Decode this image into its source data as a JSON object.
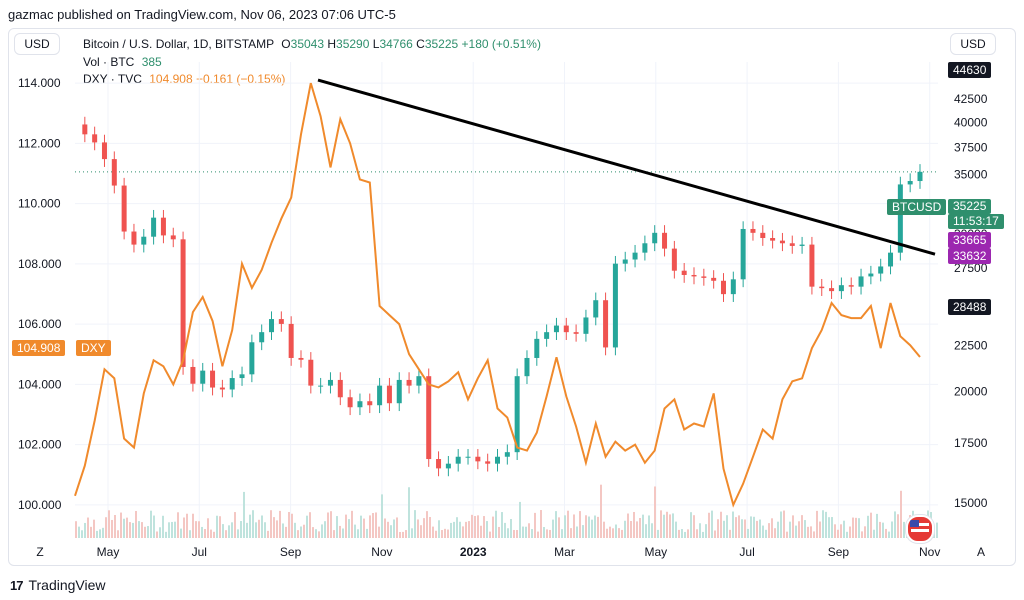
{
  "header_note": "gazmac published on TradingView.com, Nov 06, 2023 07:06 UTC-5",
  "currency_left": "USD",
  "currency_right": "USD",
  "legend": {
    "symbol": "Bitcoin / U.S. Dollar, 1D, BITSTAMP",
    "open_label": "O",
    "open": "35043",
    "high_label": "H",
    "high": "35290",
    "low_label": "L",
    "low": "34766",
    "close_label": "C",
    "close": "35225",
    "change": "+180 (+0.51%)",
    "vol_label": "Vol · BTC",
    "vol_value": "385",
    "dxy_label": "DXY · TVC",
    "dxy_value": "104.908",
    "dxy_change": "−0.161 (−0.15%)"
  },
  "tags": {
    "top_right": "44630",
    "btc_symbol": "BTCUSD",
    "btc_price": "35225",
    "countdown": "11:53:17",
    "purple_1": "33665",
    "purple_2": "33632",
    "trend_value": "28488",
    "dxy_value": "104.908",
    "dxy_symbol": "DXY"
  },
  "corner_z": "Z",
  "corner_a": "A",
  "brand": "TradingView",
  "chart_data": {
    "type": "line",
    "title": "Bitcoin / U.S. Dollar, 1D, BITSTAMP",
    "x_ticks": [
      "May",
      "Jul",
      "Sep",
      "Nov",
      "2023",
      "Mar",
      "May",
      "Jul",
      "Sep",
      "Nov"
    ],
    "left_axis": {
      "label": "DXY",
      "ticks": [
        "114.000",
        "112.000",
        "110.000",
        "108.000",
        "106.000",
        "104.000",
        "102.000",
        "100.000"
      ],
      "ylim": [
        98.9,
        114.7
      ]
    },
    "right_axis": {
      "label": "BTCUSD",
      "ticks": [
        "42500",
        "40000",
        "37500",
        "35000",
        "30000",
        "27500",
        "25000",
        "22500",
        "20000",
        "17500",
        "15000"
      ]
    },
    "series": [
      {
        "name": "BTCUSD",
        "color": "#26a69a",
        "values": [
          39800,
          38800,
          38000,
          36400,
          34000,
          30200,
          29200,
          29800,
          31300,
          29900,
          29600,
          21300,
          20400,
          21100,
          20200,
          20100,
          20700,
          20900,
          22700,
          23300,
          24100,
          23800,
          21800,
          21700,
          20300,
          20300,
          20600,
          19700,
          19200,
          19500,
          19300,
          20300,
          19400,
          20600,
          20300,
          20800,
          16800,
          16400,
          16600,
          16900,
          16900,
          16700,
          16600,
          16900,
          17100,
          20800,
          21800,
          22900,
          23300,
          23700,
          23300,
          23200,
          24200,
          25300,
          22400,
          27800,
          28100,
          28600,
          29300,
          30100,
          28900,
          27300,
          27000,
          26900,
          26800,
          26600,
          25700,
          26700,
          30400,
          30100,
          29700,
          29500,
          29300,
          29100,
          29200,
          26200,
          26100,
          25900,
          26300,
          26200,
          26900,
          27100,
          27600,
          28600,
          34100,
          34400,
          35225
        ]
      },
      {
        "name": "DXY",
        "color": "#f08a2c",
        "values": [
          100.3,
          101.3,
          102.8,
          104.5,
          104.2,
          102.2,
          101.9,
          103.7,
          104.8,
          104.6,
          104.0,
          104.8,
          106.4,
          106.9,
          106.1,
          104.6,
          105.8,
          108.0,
          107.2,
          107.8,
          108.7,
          109.5,
          110.2,
          112.3,
          114.0,
          112.9,
          111.2,
          112.8,
          112.0,
          110.8,
          110.7,
          106.6,
          106.3,
          106.0,
          105.0,
          104.5,
          104.0,
          103.9,
          104.1,
          104.4,
          103.5,
          104.2,
          104.8,
          103.2,
          102.9,
          101.9,
          101.8,
          102.4,
          103.6,
          104.9,
          103.6,
          102.6,
          101.4,
          102.7,
          101.6,
          102.1,
          101.8,
          102.0,
          101.4,
          101.8,
          103.2,
          103.5,
          102.5,
          102.7,
          102.6,
          103.7,
          101.2,
          100.0,
          100.7,
          101.6,
          102.5,
          102.2,
          103.5,
          104.1,
          104.2,
          105.2,
          105.8,
          106.7,
          106.3,
          106.2,
          106.2,
          106.6,
          105.2,
          106.7,
          105.6,
          105.3,
          104.908
        ]
      }
    ],
    "trendline_right_axis": {
      "start": 44630,
      "end": 28488
    },
    "legend_position": "top-left",
    "grid": true
  }
}
